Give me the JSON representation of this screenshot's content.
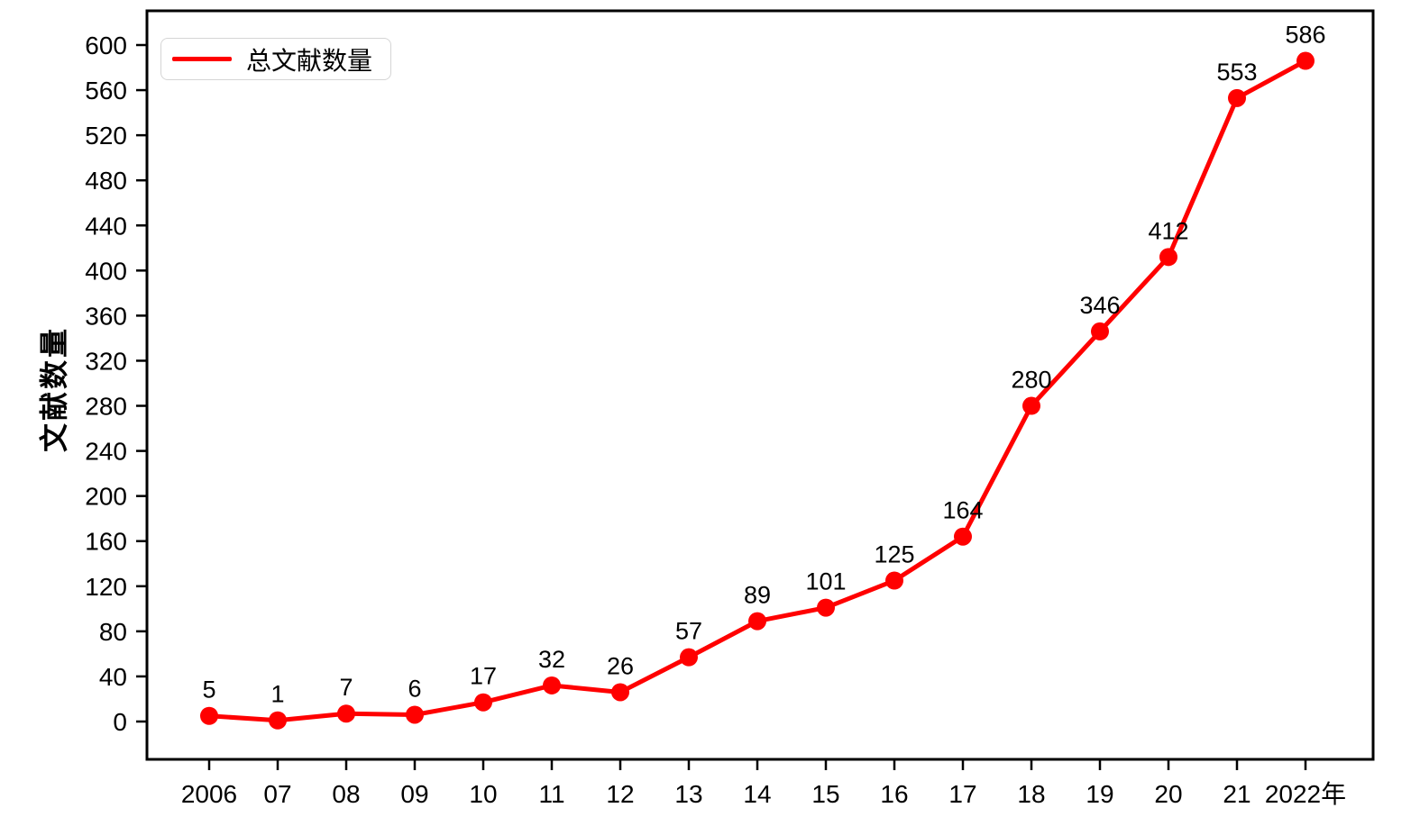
{
  "chart_data": {
    "type": "line",
    "title": "",
    "xlabel": "",
    "ylabel": "文献数量",
    "categories": [
      "2006",
      "07",
      "08",
      "09",
      "10",
      "11",
      "12",
      "13",
      "14",
      "15",
      "16",
      "17",
      "18",
      "19",
      "20",
      "21",
      "2022年"
    ],
    "series": [
      {
        "name": "总文献数量",
        "color": "#ff0000",
        "values": [
          5,
          1,
          7,
          6,
          17,
          32,
          26,
          57,
          89,
          101,
          125,
          164,
          280,
          346,
          412,
          553,
          586
        ]
      }
    ],
    "ylim": [
      0,
      600
    ],
    "ytick_step": 40,
    "yticks": [
      0,
      40,
      80,
      120,
      160,
      200,
      240,
      280,
      320,
      360,
      400,
      440,
      480,
      520,
      560,
      600
    ],
    "grid": false,
    "legend_position": "upper-left",
    "show_point_labels": true,
    "frame": true,
    "axis_color": "#000000",
    "label_color": "#000000"
  }
}
